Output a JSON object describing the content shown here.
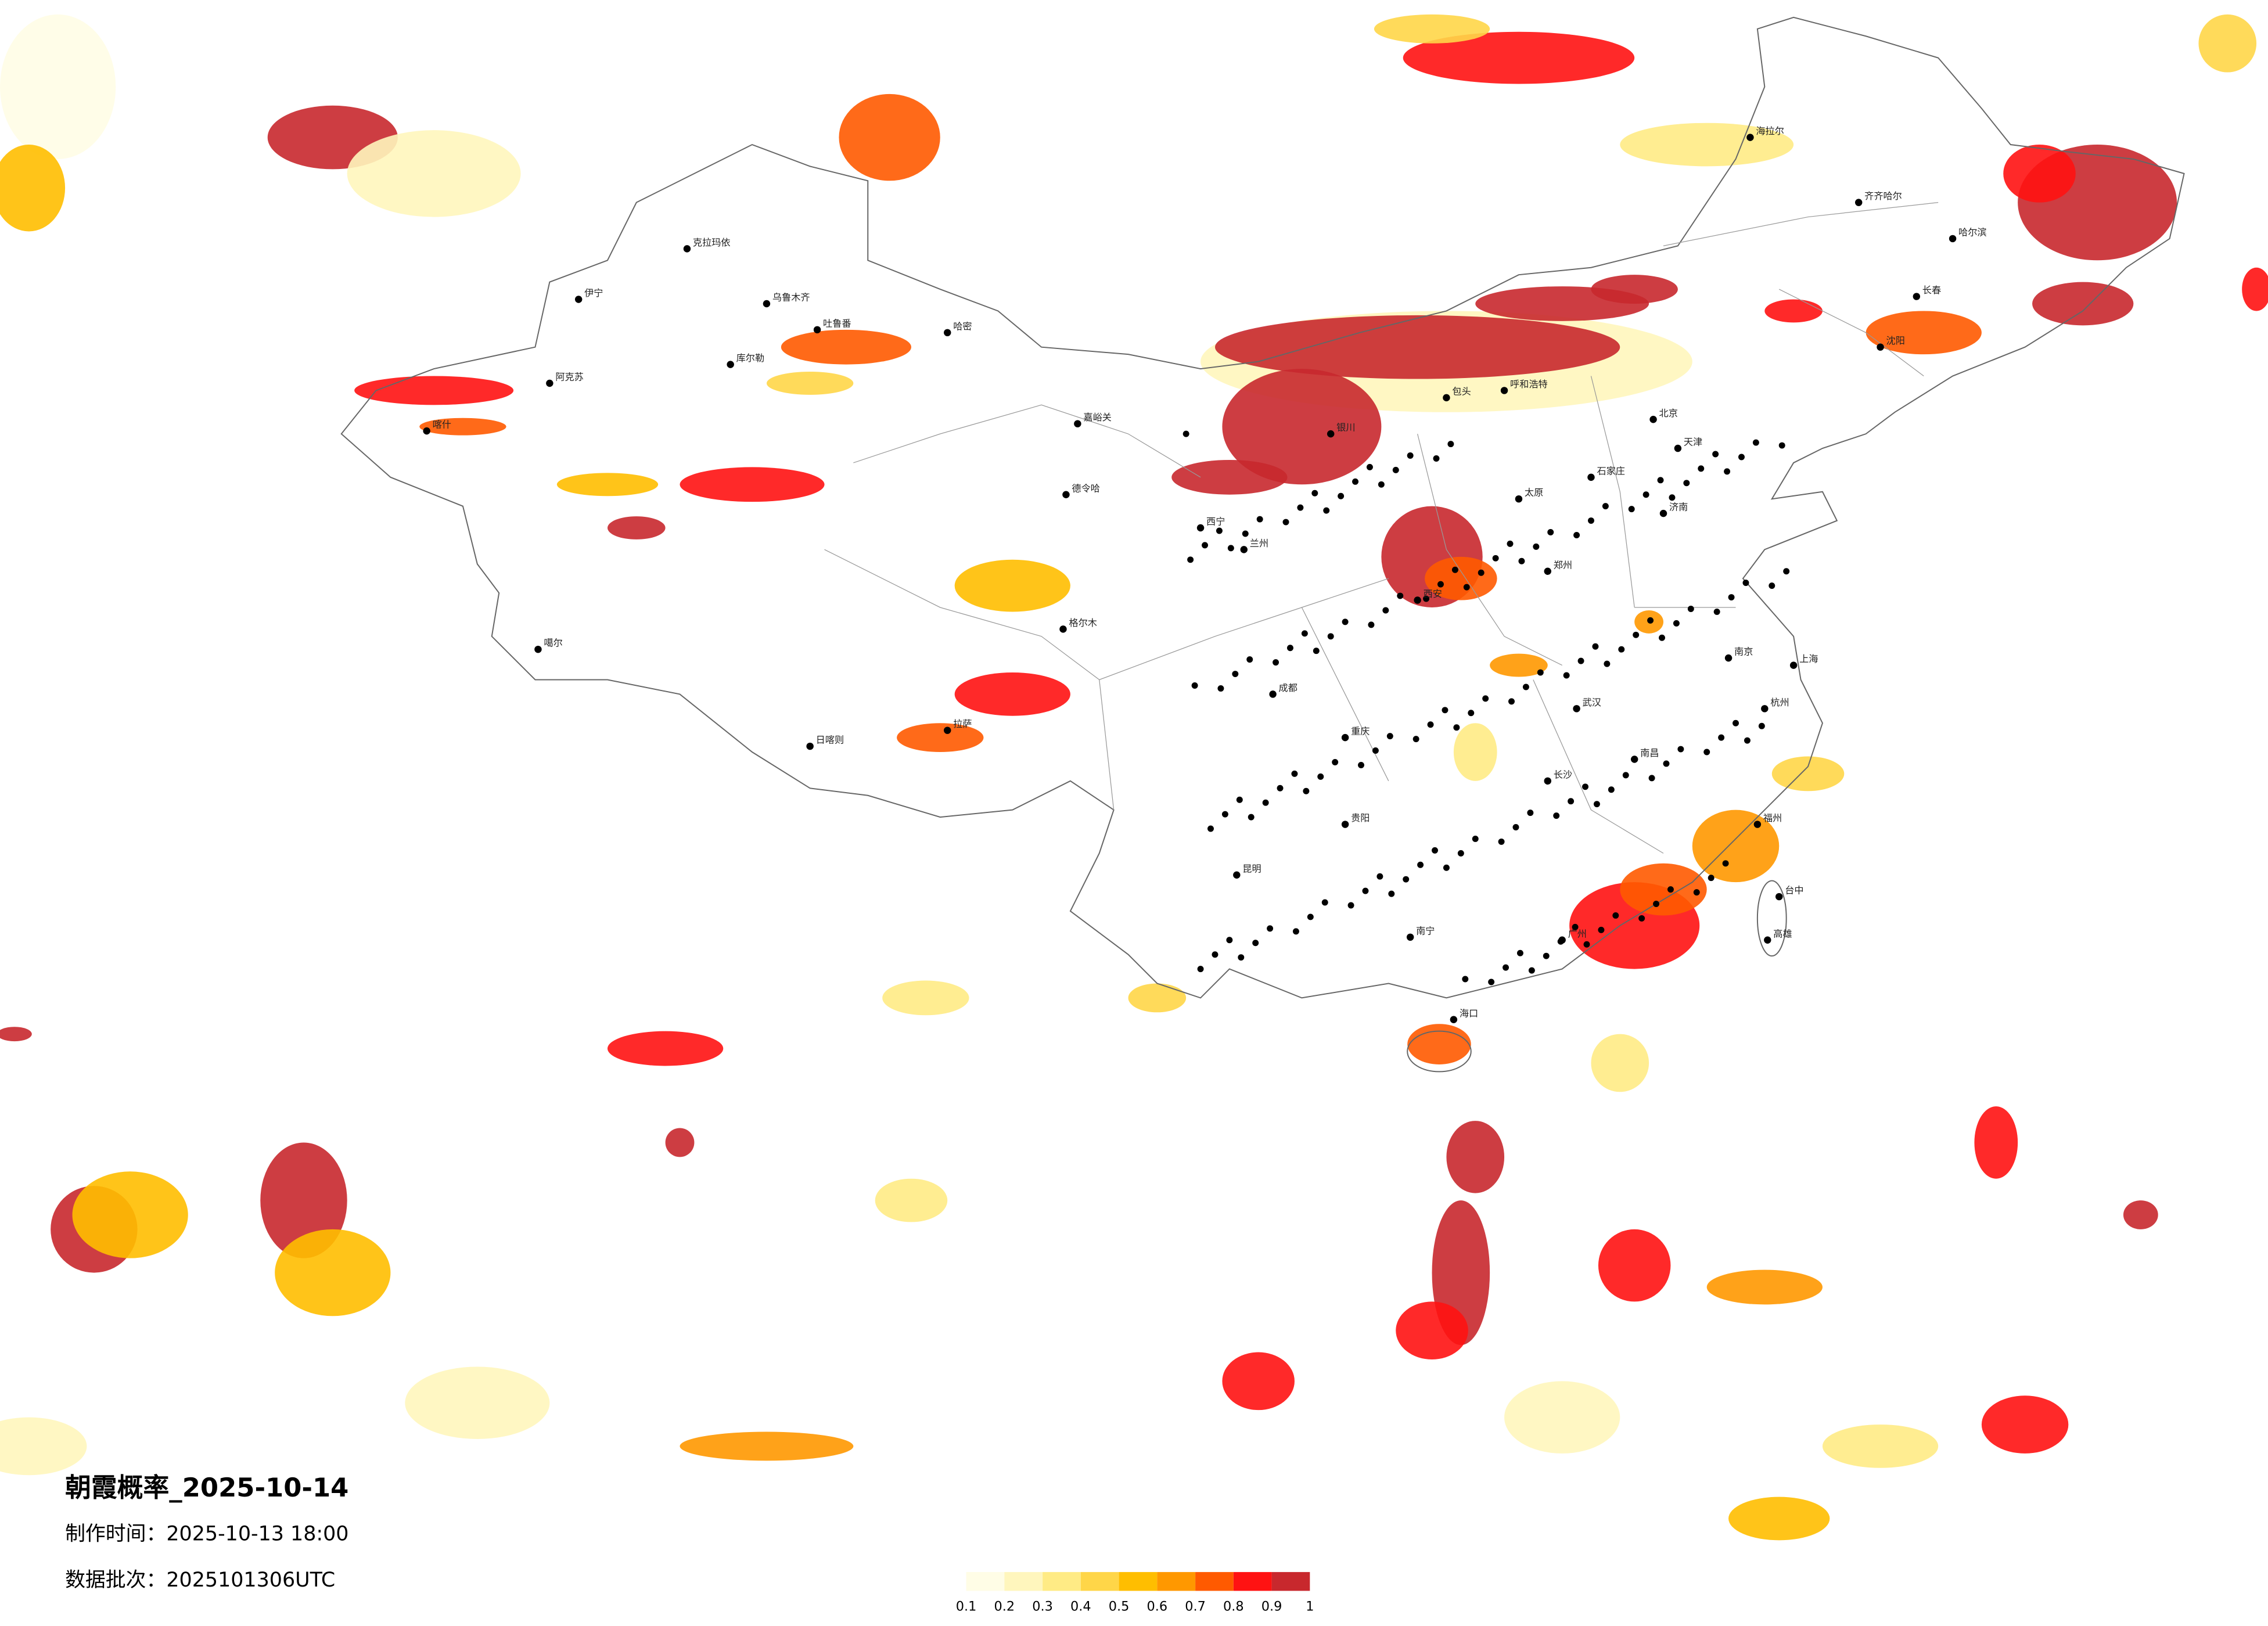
{
  "header": {
    "title": "朝霞概率_2025-10-14",
    "made_time": "制作时间：2025-10-13 18:00",
    "batch": "数据批次：2025101306UTC"
  },
  "colorbar": {
    "ticks": [
      0.1,
      0.2,
      0.3,
      0.4,
      0.5,
      0.6,
      0.7,
      0.8,
      0.9,
      1
    ],
    "colors": [
      "#fffde6",
      "#fff6bd",
      "#ffeb85",
      "#ffd648",
      "#ffbe00",
      "#ff9800",
      "#ff5a00",
      "#ff1212",
      "#c8282d"
    ]
  },
  "cities": [
    "克拉玛依",
    "乌鲁木齐",
    "伊宁",
    "阿克苏",
    "喀什",
    "哈密",
    "吐鲁番",
    "库尔勒",
    "嘉峪关",
    "德令哈",
    "格尔木",
    "拉萨",
    "日喀则",
    "噶尔",
    "海拉尔",
    "齐齐哈尔",
    "哈尔滨",
    "长春",
    "沈阳",
    "北京",
    "天津",
    "石家庄",
    "太原",
    "呼和浩特",
    "包头",
    "银川",
    "兰州",
    "西宁",
    "西安",
    "郑州",
    "济南",
    "南京",
    "上海",
    "杭州",
    "武汉",
    "长沙",
    "南昌",
    "福州",
    "广州",
    "南宁",
    "海口",
    "贵阳",
    "昆明",
    "成都",
    "重庆",
    "台中",
    "高雄"
  ]
}
